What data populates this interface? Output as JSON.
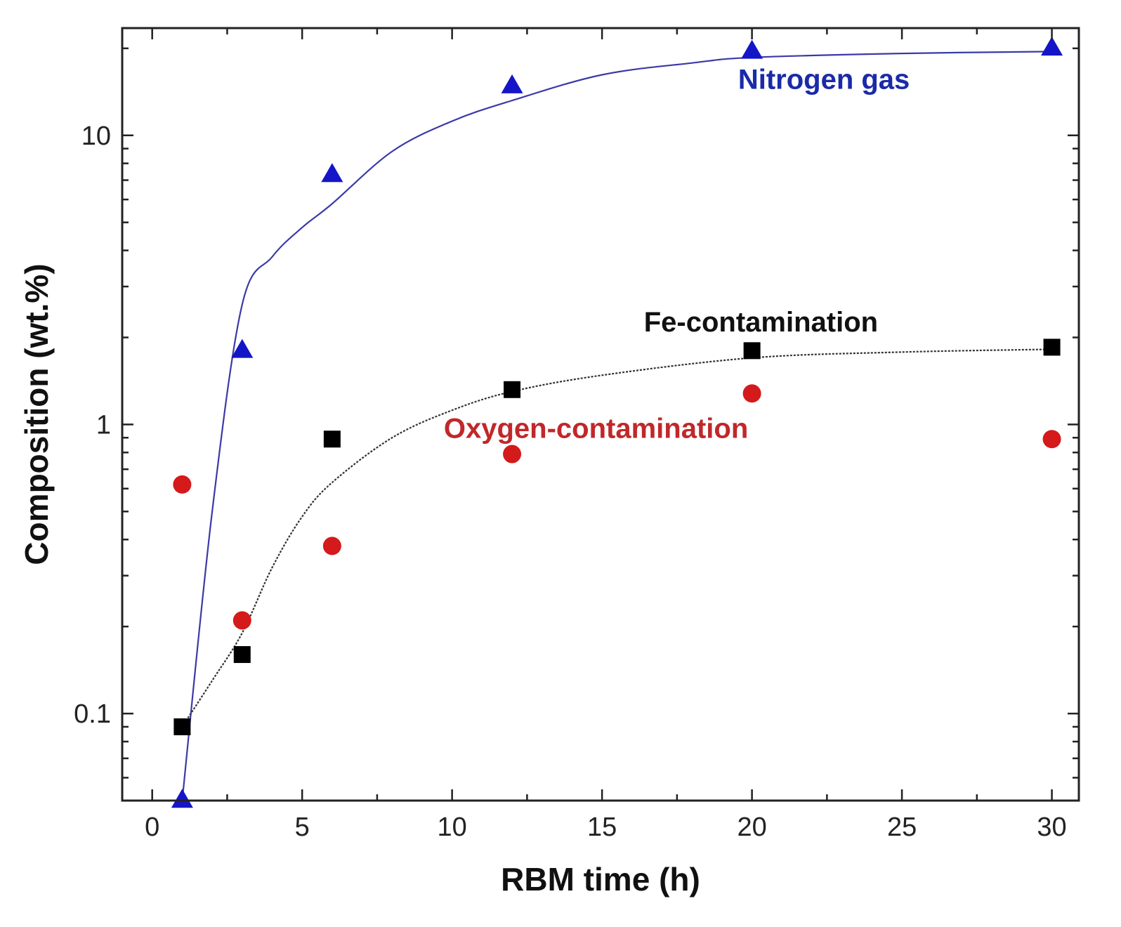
{
  "chart_data": {
    "type": "scatter",
    "xlabel": "RBM time (h)",
    "ylabel": "Composition (wt.%)",
    "xlim": [
      -1,
      30.9
    ],
    "ylim": [
      0.05,
      23.5
    ],
    "yscale": "log",
    "x_ticks": [
      0,
      5,
      10,
      15,
      20,
      25,
      30
    ],
    "x_tick_labels": [
      "0",
      "5",
      "10",
      "15",
      "20",
      "25",
      "30"
    ],
    "y_ticks": [
      0.1,
      1,
      10
    ],
    "y_tick_labels": [
      "0.1",
      "1",
      "10"
    ],
    "grid": false,
    "series": [
      {
        "marker": "triangle",
        "color": "#1515c8",
        "x": [
          1,
          3,
          6,
          12,
          20,
          30
        ],
        "y": [
          0.05,
          1.8,
          7.3,
          14.8,
          19.5,
          20.0
        ],
        "fit": {
          "x": [
            1,
            2,
            3,
            4,
            5,
            6,
            8,
            10,
            12,
            15,
            18,
            20,
            25,
            30
          ],
          "y": [
            0.05,
            0.5,
            2.6,
            3.8,
            4.8,
            5.8,
            8.8,
            11.2,
            13.2,
            16.2,
            17.8,
            18.6,
            19.2,
            19.5
          ]
        }
      },
      {
        "marker": "square",
        "color": "#000000",
        "x": [
          1,
          3,
          6,
          12,
          20,
          30
        ],
        "y": [
          0.09,
          0.16,
          0.89,
          1.32,
          1.8,
          1.85
        ],
        "fit": {
          "x": [
            1,
            2,
            3,
            4,
            5,
            6,
            8,
            10,
            12,
            15,
            20,
            25,
            30
          ],
          "y": [
            0.09,
            0.13,
            0.19,
            0.32,
            0.48,
            0.63,
            0.9,
            1.12,
            1.3,
            1.48,
            1.7,
            1.78,
            1.82
          ]
        }
      },
      {
        "marker": "circle",
        "color": "#d41a1a",
        "x": [
          1,
          3,
          6,
          12,
          20,
          30
        ],
        "y": [
          0.62,
          0.21,
          0.38,
          0.79,
          1.28,
          0.89
        ]
      }
    ],
    "annotations": [
      {
        "text": "Nitrogen gas",
        "color": "#1a2ba8",
        "x": 22.4,
        "y": 14.5
      },
      {
        "text": "Fe-contamination",
        "color": "#111111",
        "x": 20.3,
        "y": 2.1
      },
      {
        "text": "Oxygen-contamination",
        "color": "#c0282a",
        "x": 14.8,
        "y": 0.9
      }
    ]
  }
}
